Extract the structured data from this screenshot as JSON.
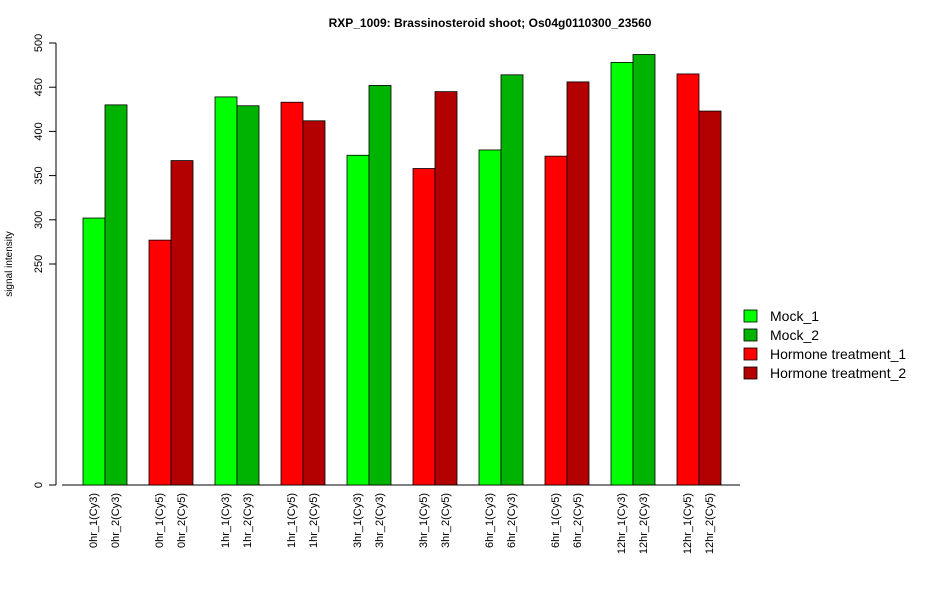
{
  "chart_data": {
    "type": "bar",
    "title": "RXP_1009: Brassinosteroid shoot; Os04g0110300_23560",
    "ylabel": "signal intensity",
    "xlabel": "",
    "ylim": [
      0,
      500
    ],
    "yticks": [
      0,
      250,
      300,
      350,
      400,
      450,
      500
    ],
    "grid": false,
    "legend_position": "right",
    "legend": [
      {
        "name": "Mock_1",
        "color": "#00ff00"
      },
      {
        "name": "Mock_2",
        "color": "#00b300"
      },
      {
        "name": "Hormone treatment_1",
        "color": "#ff0000"
      },
      {
        "name": "Hormone treatment_2",
        "color": "#b30000"
      }
    ],
    "bars": [
      {
        "label": "0hr_1(Cy3)",
        "value": 302,
        "series": "Mock_1"
      },
      {
        "label": "0hr_2(Cy3)",
        "value": 430,
        "series": "Mock_2"
      },
      {
        "label": "0hr_1(Cy5)",
        "value": 277,
        "series": "Hormone treatment_1"
      },
      {
        "label": "0hr_2(Cy5)",
        "value": 367,
        "series": "Hormone treatment_2"
      },
      {
        "label": "1hr_1(Cy3)",
        "value": 439,
        "series": "Mock_1"
      },
      {
        "label": "1hr_2(Cy3)",
        "value": 429,
        "series": "Mock_2"
      },
      {
        "label": "1hr_1(Cy5)",
        "value": 433,
        "series": "Hormone treatment_1"
      },
      {
        "label": "1hr_2(Cy5)",
        "value": 412,
        "series": "Hormone treatment_2"
      },
      {
        "label": "3hr_1(Cy3)",
        "value": 373,
        "series": "Mock_1"
      },
      {
        "label": "3hr_2(Cy3)",
        "value": 452,
        "series": "Mock_2"
      },
      {
        "label": "3hr_1(Cy5)",
        "value": 358,
        "series": "Hormone treatment_1"
      },
      {
        "label": "3hr_2(Cy5)",
        "value": 445,
        "series": "Hormone treatment_2"
      },
      {
        "label": "6hr_1(Cy3)",
        "value": 379,
        "series": "Mock_1"
      },
      {
        "label": "6hr_2(Cy3)",
        "value": 464,
        "series": "Mock_2"
      },
      {
        "label": "6hr_1(Cy5)",
        "value": 372,
        "series": "Hormone treatment_1"
      },
      {
        "label": "6hr_2(Cy5)",
        "value": 456,
        "series": "Hormone treatment_2"
      },
      {
        "label": "12hr_1(Cy3)",
        "value": 478,
        "series": "Mock_1"
      },
      {
        "label": "12hr_2(Cy3)",
        "value": 487,
        "series": "Mock_2"
      },
      {
        "label": "12hr_1(Cy5)",
        "value": 465,
        "series": "Hormone treatment_1"
      },
      {
        "label": "12hr_2(Cy5)",
        "value": 423,
        "series": "Hormone treatment_2"
      }
    ]
  }
}
